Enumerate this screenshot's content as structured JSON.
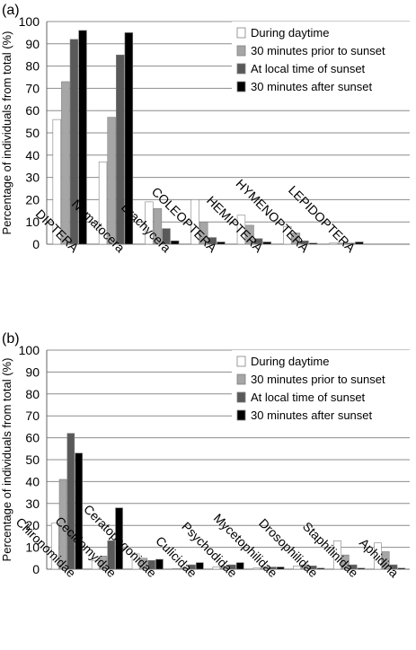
{
  "chart_data": [
    {
      "panel_label": "(a)",
      "type": "bar",
      "ylabel": "Percentage of individuals from total (%)",
      "ylim": [
        0,
        100
      ],
      "yticks": [
        0,
        10,
        20,
        30,
        40,
        50,
        60,
        70,
        80,
        90,
        100
      ],
      "grid": true,
      "legend_position": "top-right",
      "categories": [
        "DIPTERA",
        "Nematocera",
        "Brachycera",
        "COLEOPTERA",
        "HEMIPTERA",
        "HYMENOPTERA",
        "LEPIDOPTERA"
      ],
      "series": [
        {
          "name": "During daytime",
          "color": "#ffffff",
          "values": [
            56,
            37,
            19,
            20,
            13,
            8,
            0.5
          ]
        },
        {
          "name": "30 minutes prior to sunset",
          "color": "#a6a6a6",
          "values": [
            73,
            57,
            16,
            10,
            8.5,
            5,
            0.5
          ]
        },
        {
          "name": "At local time of sunset",
          "color": "#595959",
          "values": [
            92,
            85,
            7,
            3,
            2.5,
            1.5,
            0.5
          ]
        },
        {
          "name": "30 minutes after sunset",
          "color": "#000000",
          "values": [
            96,
            95,
            1.5,
            1,
            1,
            0.5,
            1
          ]
        }
      ]
    },
    {
      "panel_label": "(b)",
      "type": "bar",
      "ylabel": "Percentage of individuals from total (%)",
      "ylim": [
        0,
        100
      ],
      "yticks": [
        0,
        10,
        20,
        30,
        40,
        50,
        60,
        70,
        80,
        90,
        100
      ],
      "grid": true,
      "legend_position": "top-right",
      "categories": [
        "Chironomidae",
        "Cecidomyidae",
        "Ceratopogonidae",
        "Culicidae",
        "Psychodidae",
        "Mycetophilidae",
        "Drosophilidae",
        "Staphilinidae",
        "Aphidina"
      ],
      "series": [
        {
          "name": "During daytime",
          "color": "#ffffff",
          "values": [
            21,
            4,
            7,
            0.3,
            1,
            0.5,
            1.5,
            13,
            12
          ]
        },
        {
          "name": "30 minutes prior to sunset",
          "color": "#a6a6a6",
          "values": [
            41,
            6,
            5,
            0.5,
            1.5,
            1,
            2,
            6.5,
            8
          ]
        },
        {
          "name": "At local time of sunset",
          "color": "#595959",
          "values": [
            62,
            13,
            4,
            2,
            2,
            1,
            1.5,
            2,
            2
          ]
        },
        {
          "name": "30 minutes after sunset",
          "color": "#000000",
          "values": [
            53,
            28,
            4.5,
            3,
            3,
            1,
            0.5,
            0.5,
            0.5
          ]
        }
      ]
    }
  ]
}
